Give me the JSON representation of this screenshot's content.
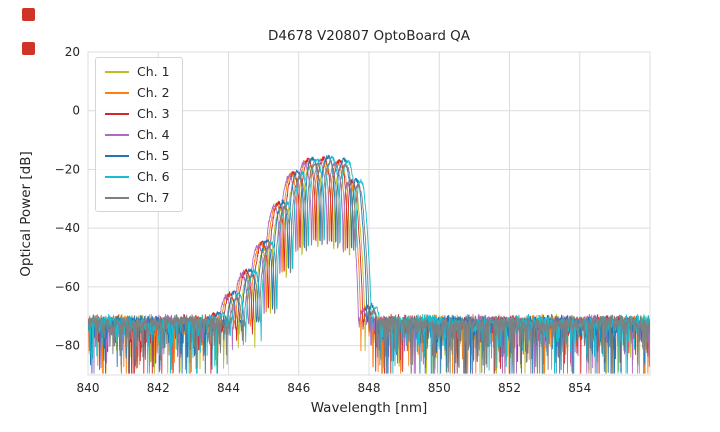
{
  "decorations": {
    "top_left_markers": {
      "count": 2,
      "color": "#cf3527",
      "shape": "red-square"
    }
  },
  "chart_data": {
    "type": "line",
    "title": "D4678 V20807 OptoBoard QA",
    "xlabel": "Wavelength [nm]",
    "ylabel": "Optical Power [dB]",
    "xlim": [
      840,
      856
    ],
    "ylim": [
      -90,
      20
    ],
    "xticks": [
      840,
      842,
      844,
      846,
      848,
      850,
      852,
      854
    ],
    "yticks": [
      20,
      0,
      -20,
      -40,
      -60,
      -80
    ],
    "grid": true,
    "legend_position": "upper left",
    "series": [
      {
        "name": "Ch. 1",
        "color": "#bcbd22",
        "offset_nm": 0.02,
        "level_db": -1.5
      },
      {
        "name": "Ch. 2",
        "color": "#ff7f0e",
        "offset_nm": -0.1,
        "level_db": 0.0
      },
      {
        "name": "Ch. 3",
        "color": "#d62728",
        "offset_nm": -0.04,
        "level_db": 0.5
      },
      {
        "name": "Ch. 4",
        "color": "#ab6bc2",
        "offset_nm": -0.16,
        "level_db": -0.5
      },
      {
        "name": "Ch. 5",
        "color": "#1f77b4",
        "offset_nm": 0.08,
        "level_db": 1.0
      },
      {
        "name": "Ch. 6",
        "color": "#17becf",
        "offset_nm": 0.2,
        "level_db": 0.5
      },
      {
        "name": "Ch. 7",
        "color": "#7f7f7f",
        "offset_nm": 0.14,
        "level_db": -1.0
      }
    ],
    "spectrum_model": {
      "description": "VCSEL-like optical spectrum: noise floor ~ -70 to -88 dB across 840-856 nm, multi-lobed peak between ~844 and ~848 nm reaching ~ -16 dB, sharp cliff near 847.8 nm",
      "envelope_points": [
        [
          840.0,
          -76
        ],
        [
          843.0,
          -75
        ],
        [
          843.6,
          -70
        ],
        [
          844.0,
          -64
        ],
        [
          844.35,
          -58
        ],
        [
          844.7,
          -52
        ],
        [
          845.0,
          -45
        ],
        [
          845.3,
          -36
        ],
        [
          845.6,
          -27
        ],
        [
          845.9,
          -21
        ],
        [
          846.2,
          -17.5
        ],
        [
          846.6,
          -16.5
        ],
        [
          847.0,
          -17
        ],
        [
          847.3,
          -18
        ],
        [
          847.5,
          -19.5
        ],
        [
          847.65,
          -27
        ],
        [
          847.8,
          -45
        ],
        [
          847.95,
          -62
        ],
        [
          848.1,
          -71
        ],
        [
          848.4,
          -75
        ],
        [
          856.0,
          -75.5
        ]
      ],
      "mode_spacing_nm": 0.45,
      "notch_depth_db": 28,
      "noise_floor_db": -69.8,
      "noise_spike_db": 20,
      "x_step_nm": 0.01
    }
  }
}
